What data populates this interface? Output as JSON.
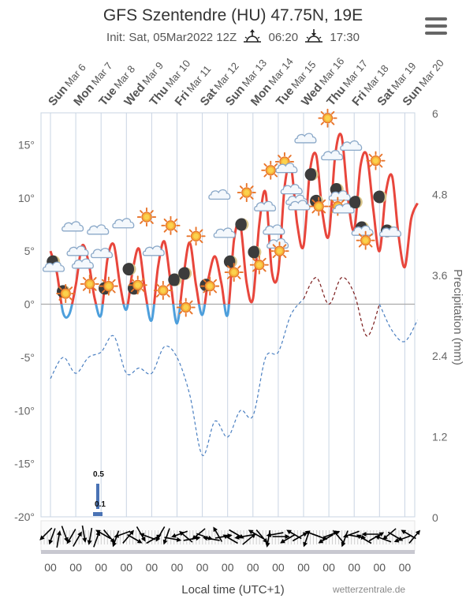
{
  "header": {
    "title": "GFS Szentendre (HU) 47.75N, 19E",
    "init_label": "Init: Sat, 05Mar2022 12Z",
    "sunrise": "06:20",
    "sunset": "17:30"
  },
  "footer": {
    "xlabel": "Local time (UTC+1)",
    "credit": "wetterzentrale.de"
  },
  "colors": {
    "temperature_warm": "#e8463c",
    "temperature_cold": "#4d9fdc",
    "precip_line_blue": "#4a7fc1",
    "precip_line_dark": "#7a1a1a",
    "grid": "#c9d4e3",
    "wind_arrow": "#000000"
  },
  "chart_data": {
    "type": "line",
    "x_days": [
      {
        "day": "Sun",
        "date": "Mar 6"
      },
      {
        "day": "Mon",
        "date": "Mar 7"
      },
      {
        "day": "Tue",
        "date": "Mar 8"
      },
      {
        "day": "Wed",
        "date": "Mar 9"
      },
      {
        "day": "Thu",
        "date": "Mar 10"
      },
      {
        "day": "Fri",
        "date": "Mar 11"
      },
      {
        "day": "Sat",
        "date": "Mar 12"
      },
      {
        "day": "Sun",
        "date": "Mar 13"
      },
      {
        "day": "Mon",
        "date": "Mar 14"
      },
      {
        "day": "Tue",
        "date": "Mar 15"
      },
      {
        "day": "Wed",
        "date": "Mar 16"
      },
      {
        "day": "Thu",
        "date": "Mar 17"
      },
      {
        "day": "Fri",
        "date": "Mar 18"
      },
      {
        "day": "Sat",
        "date": "Mar 19"
      },
      {
        "day": "Sun",
        "date": "Mar 20"
      }
    ],
    "time_tick_label": "00",
    "time_tick_count": 15,
    "left_axis": {
      "ylim": [
        -20,
        18
      ],
      "ticks": [
        -20,
        -15,
        -10,
        -5,
        0,
        5,
        10,
        15
      ],
      "unit": "°"
    },
    "right_axis": {
      "label": "Precipitation (mm)",
      "ylim": [
        0,
        6
      ],
      "ticks": [
        "0",
        "1.2",
        "2.4",
        "3.6",
        "4.8",
        "6"
      ]
    },
    "temperature": {
      "t": [
        0,
        0.25,
        0.5,
        0.75,
        1,
        1.25,
        1.5,
        1.75,
        2,
        2.25,
        2.5,
        2.75,
        3,
        3.25,
        3.5,
        3.75,
        4,
        4.25,
        4.5,
        4.75,
        5,
        5.25,
        5.5,
        5.75,
        6,
        6.25,
        6.5,
        6.75,
        7,
        7.25,
        7.5,
        7.75,
        8,
        8.25,
        8.5,
        8.75,
        9,
        9.25,
        9.5,
        9.75,
        10,
        10.25,
        10.5,
        10.75,
        11,
        11.25,
        11.5,
        11.75,
        12,
        12.25,
        12.5,
        12.75,
        13,
        13.25,
        13.5,
        13.75,
        14,
        14.25,
        14.5
      ],
      "values": [
        5.0,
        3.0,
        -0.8,
        -0.9,
        1.8,
        5.5,
        4.0,
        0.5,
        -1.0,
        4.2,
        5.6,
        1.8,
        -0.5,
        3.2,
        5.2,
        1.0,
        -1.5,
        3.5,
        5.9,
        2.0,
        -1.8,
        2.5,
        5.8,
        1.8,
        -1.0,
        2.5,
        4.5,
        2.0,
        -1.0,
        6.0,
        7.5,
        2.0,
        0.5,
        7.5,
        10.5,
        3.0,
        3.0,
        11.0,
        13.0,
        7.5,
        5.5,
        12.5,
        14.0,
        8.5,
        6.5,
        14.0,
        15.8,
        10.0,
        7.0,
        13.0,
        14.0,
        9.0,
        5.0,
        10.5,
        12.0,
        6.5,
        3.5,
        8.0,
        9.5
      ]
    },
    "temp_precip_line": {
      "t": [
        0,
        0.5,
        1,
        1.5,
        2,
        2.5,
        3,
        3.5,
        4,
        4.5,
        5,
        5.5,
        6,
        6.5,
        7,
        7.5,
        8,
        8.5,
        9,
        9.5,
        10,
        10.5,
        11,
        11.5,
        12,
        12.5,
        13,
        13.5,
        14,
        14.5
      ],
      "values": [
        -7.0,
        -5.0,
        -6.5,
        -5.0,
        -4.5,
        -3.0,
        -6.5,
        -6.0,
        -6.5,
        -4.0,
        -5.0,
        -8.5,
        -14.2,
        -11.0,
        -12.5,
        -10.0,
        -10.5,
        -5.0,
        -4.5,
        -1.0,
        0.5,
        2.5,
        0.0,
        2.5,
        1.0,
        -3.0,
        0.0,
        -2.5,
        -3.5,
        -1.5
      ]
    },
    "precipitation_bars": [
      {
        "t": 1.85,
        "value": 0.5,
        "label": "0.5"
      },
      {
        "t": 2.15,
        "value": 0.1,
        "label": "0.1"
      }
    ],
    "weather_icons": [
      {
        "t": 0.1,
        "temp": 4.0,
        "icon": "moon-icon"
      },
      {
        "t": 0.15,
        "temp": 3.5,
        "icon": "cloud-icon"
      },
      {
        "t": 0.5,
        "temp": 1.2,
        "icon": "moon-icon"
      },
      {
        "t": 0.6,
        "temp": 1.0,
        "icon": "sun-icon"
      },
      {
        "t": 0.9,
        "temp": 7.3,
        "icon": "cloud-icon"
      },
      {
        "t": 1.1,
        "temp": 5.0,
        "icon": "cloud-icon"
      },
      {
        "t": 1.3,
        "temp": 3.8,
        "icon": "cloud-icon"
      },
      {
        "t": 1.55,
        "temp": 1.9,
        "icon": "sun-icon"
      },
      {
        "t": 1.9,
        "temp": 7.0,
        "icon": "cloud-icon"
      },
      {
        "t": 2.05,
        "temp": 4.8,
        "icon": "cloud-icon"
      },
      {
        "t": 2.15,
        "temp": 1.5,
        "icon": "moon-icon"
      },
      {
        "t": 2.3,
        "temp": 1.7,
        "icon": "sun-icon"
      },
      {
        "t": 2.9,
        "temp": 7.6,
        "icon": "cloud-icon"
      },
      {
        "t": 3.1,
        "temp": 3.3,
        "icon": "moon-icon"
      },
      {
        "t": 3.3,
        "temp": 1.5,
        "icon": "moon-icon"
      },
      {
        "t": 3.45,
        "temp": 1.8,
        "icon": "sun-icon"
      },
      {
        "t": 3.8,
        "temp": 8.2,
        "icon": "sun-icon"
      },
      {
        "t": 4.1,
        "temp": 5.0,
        "icon": "cloud-icon"
      },
      {
        "t": 4.45,
        "temp": 1.3,
        "icon": "sun-icon"
      },
      {
        "t": 4.75,
        "temp": 7.4,
        "icon": "sun-icon"
      },
      {
        "t": 4.9,
        "temp": 2.3,
        "icon": "moon-icon"
      },
      {
        "t": 5.3,
        "temp": 2.9,
        "icon": "moon-icon"
      },
      {
        "t": 5.35,
        "temp": -0.3,
        "icon": "sun-icon"
      },
      {
        "t": 5.75,
        "temp": 6.4,
        "icon": "sun-icon"
      },
      {
        "t": 6.15,
        "temp": 1.8,
        "icon": "moon-icon"
      },
      {
        "t": 6.3,
        "temp": 1.7,
        "icon": "sun-icon"
      },
      {
        "t": 6.7,
        "temp": 10.3,
        "icon": "cloud-icon"
      },
      {
        "t": 6.9,
        "temp": 6.7,
        "icon": "cloud-icon"
      },
      {
        "t": 7.1,
        "temp": 4.0,
        "icon": "moon-icon"
      },
      {
        "t": 7.25,
        "temp": 3.0,
        "icon": "sun-icon"
      },
      {
        "t": 7.55,
        "temp": 7.5,
        "icon": "moon-icon"
      },
      {
        "t": 7.75,
        "temp": 10.5,
        "icon": "sun-icon"
      },
      {
        "t": 8.05,
        "temp": 4.9,
        "icon": "moon-icon"
      },
      {
        "t": 8.25,
        "temp": 3.7,
        "icon": "sun-icon"
      },
      {
        "t": 8.5,
        "temp": 9.2,
        "icon": "cloud-icon"
      },
      {
        "t": 8.7,
        "temp": 12.6,
        "icon": "sun-icon"
      },
      {
        "t": 8.85,
        "temp": 7.0,
        "icon": "cloud-icon"
      },
      {
        "t": 9.0,
        "temp": 5.7,
        "icon": "cloud-icon"
      },
      {
        "t": 9.05,
        "temp": 5.0,
        "icon": "sun-icon"
      },
      {
        "t": 9.25,
        "temp": 13.4,
        "icon": "sun-icon"
      },
      {
        "t": 9.35,
        "temp": 12.8,
        "icon": "cloud-icon"
      },
      {
        "t": 9.55,
        "temp": 10.8,
        "icon": "cloud-icon"
      },
      {
        "t": 9.75,
        "temp": 9.8,
        "icon": "cloud-icon"
      },
      {
        "t": 9.85,
        "temp": 9.3,
        "icon": "cloud-icon"
      },
      {
        "t": 10.1,
        "temp": 15.6,
        "icon": "cloud-icon"
      },
      {
        "t": 10.3,
        "temp": 12.2,
        "icon": "moon-icon"
      },
      {
        "t": 10.5,
        "temp": 9.7,
        "icon": "moon-icon"
      },
      {
        "t": 10.6,
        "temp": 9.2,
        "icon": "sun-icon"
      },
      {
        "t": 10.95,
        "temp": 17.5,
        "icon": "sun-icon"
      },
      {
        "t": 11.15,
        "temp": 14.0,
        "icon": "cloud-icon"
      },
      {
        "t": 11.3,
        "temp": 10.8,
        "icon": "moon-icon"
      },
      {
        "t": 11.45,
        "temp": 10.2,
        "icon": "cloud-icon"
      },
      {
        "t": 11.35,
        "temp": 9.2,
        "icon": "sun-icon"
      },
      {
        "t": 11.6,
        "temp": 9.0,
        "icon": "cloud-icon"
      },
      {
        "t": 11.9,
        "temp": 14.9,
        "icon": "cloud-icon"
      },
      {
        "t": 12.05,
        "temp": 9.6,
        "icon": "moon-icon"
      },
      {
        "t": 12.3,
        "temp": 7.2,
        "icon": "moon-icon"
      },
      {
        "t": 12.35,
        "temp": 6.9,
        "icon": "cloud-icon"
      },
      {
        "t": 12.45,
        "temp": 6.0,
        "icon": "sun-icon"
      },
      {
        "t": 12.85,
        "temp": 13.5,
        "icon": "sun-icon"
      },
      {
        "t": 13.0,
        "temp": 10.1,
        "icon": "moon-icon"
      },
      {
        "t": 13.3,
        "temp": 6.9,
        "icon": "moon-icon"
      },
      {
        "t": 13.45,
        "temp": 6.8,
        "icon": "cloud-icon"
      }
    ],
    "wind_arrows_deg": [
      225,
      200,
      10,
      160,
      210,
      30,
      170,
      190,
      20,
      300,
      140,
      200,
      250,
      40,
      120,
      150,
      290,
      60,
      210,
      200,
      100,
      250,
      310,
      80,
      230,
      110,
      280,
      330,
      80,
      300,
      120,
      260,
      50,
      300,
      140,
      190,
      260,
      90,
      240,
      300,
      60,
      200,
      290,
      110,
      240,
      70,
      320,
      200,
      250,
      100,
      300,
      270,
      60,
      290,
      230,
      120,
      250,
      300,
      40
    ]
  }
}
